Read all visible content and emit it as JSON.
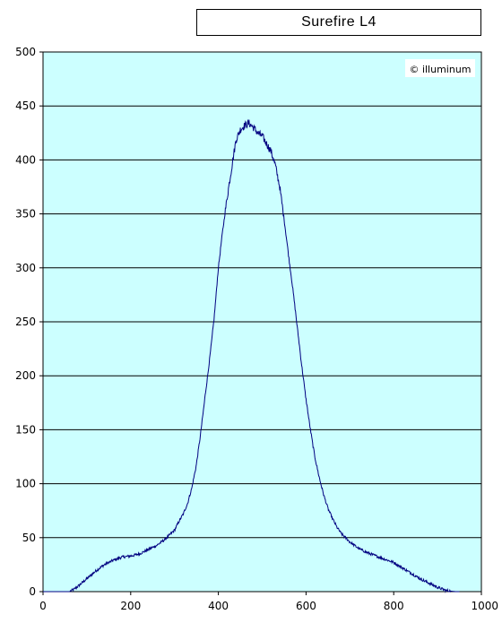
{
  "chart_data": {
    "type": "line",
    "title": "Surefire L4",
    "watermark": "© illuminum",
    "xlim": [
      0,
      1000
    ],
    "ylim": [
      0,
      500
    ],
    "x_ticks": [
      0,
      200,
      400,
      600,
      800,
      1000
    ],
    "y_ticks": [
      0,
      50,
      100,
      150,
      200,
      250,
      300,
      350,
      400,
      450,
      500
    ],
    "grid": "horizontal",
    "legend": "none",
    "colors": {
      "plot_background": "#ccffff",
      "line": "#000080",
      "grid": "#000000"
    },
    "series": [
      {
        "x": [
          0,
          60,
          70,
          80,
          100,
          120,
          140,
          160,
          180,
          200,
          220,
          240,
          260,
          280,
          300,
          310,
          320,
          330,
          340,
          350,
          360,
          370,
          380,
          390,
          400,
          410,
          420,
          430,
          440,
          450,
          460,
          470,
          480,
          490,
          500,
          510,
          520,
          530,
          540,
          550,
          560,
          570,
          580,
          590,
          600,
          610,
          620,
          630,
          640,
          650,
          660,
          670,
          680,
          690,
          700,
          720,
          740,
          760,
          780,
          800,
          820,
          840,
          860,
          880,
          900,
          920,
          940,
          950
        ],
        "y": [
          0,
          0,
          2,
          5,
          12,
          19,
          25,
          29,
          32,
          33,
          35,
          39,
          43,
          49,
          57,
          65,
          72,
          82,
          97,
          118,
          148,
          182,
          215,
          252,
          300,
          335,
          365,
          392,
          418,
          428,
          432,
          434,
          430,
          425,
          422,
          415,
          408,
          395,
          375,
          345,
          312,
          280,
          245,
          210,
          178,
          150,
          125,
          106,
          90,
          77,
          68,
          60,
          54,
          50,
          46,
          40,
          36,
          33,
          30,
          27,
          22,
          17,
          12,
          8,
          4,
          1,
          0,
          0
        ]
      }
    ]
  }
}
